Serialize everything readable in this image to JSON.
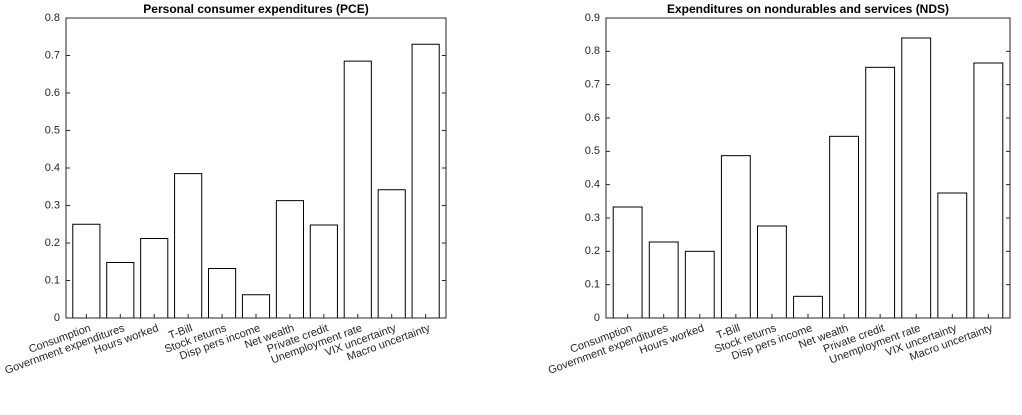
{
  "chart_data": [
    {
      "type": "bar",
      "title": "Personal consumer expenditures (PCE)",
      "categories": [
        "Consumption",
        "Government expenditures",
        "Hours worked",
        "T-Bill",
        "Stock returns",
        "Disp pers income",
        "Net wealth",
        "Private credit",
        "Unemployment rate",
        "VIX uncertainty",
        "Macro uncertainty"
      ],
      "values": [
        0.25,
        0.148,
        0.212,
        0.385,
        0.132,
        0.062,
        0.313,
        0.248,
        0.685,
        0.342,
        0.73
      ],
      "color": "#ffffff",
      "ylim": [
        0,
        0.8
      ],
      "yticks": [
        0,
        0.1,
        0.2,
        0.3,
        0.4,
        0.5,
        0.6,
        0.7,
        0.8
      ]
    },
    {
      "type": "bar",
      "title": "Expenditures on nondurables and services (NDS)",
      "categories": [
        "Consumption",
        "Government expenditures",
        "Hours worked",
        "T-Bill",
        "Stock returns",
        "Disp pers income",
        "Net wealth",
        "Private credit",
        "Unemployment rate",
        "VIX uncertainty",
        "Macro uncertainty"
      ],
      "values": [
        0.333,
        0.228,
        0.2,
        0.487,
        0.276,
        0.065,
        0.545,
        0.752,
        0.84,
        0.375,
        0.765
      ],
      "color": "#ffffff",
      "ylim": [
        0,
        0.9
      ],
      "yticks": [
        0,
        0.1,
        0.2,
        0.3,
        0.4,
        0.5,
        0.6,
        0.7,
        0.8,
        0.9
      ]
    }
  ]
}
